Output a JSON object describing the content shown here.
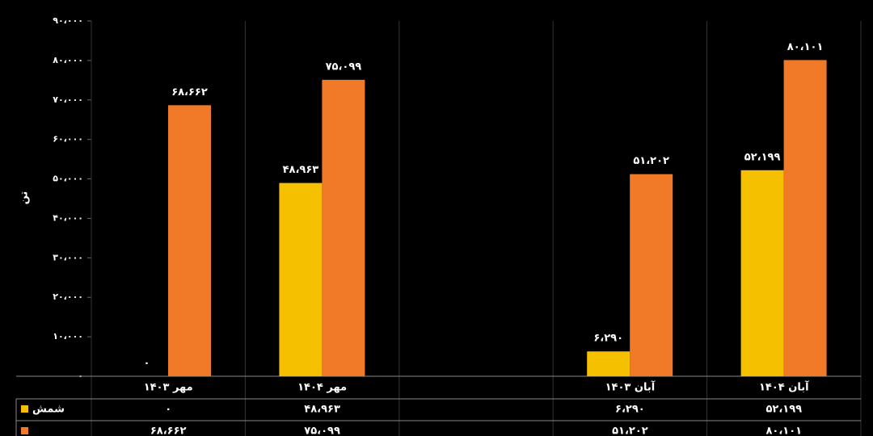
{
  "chart_data": {
    "type": "bar",
    "y_label": "تن",
    "categories": [
      "مهر ۱۴۰۳",
      "مهر ۱۴۰۴",
      null,
      "آبان ۱۴۰۳",
      "آبان ۱۴۰۴"
    ],
    "series": [
      {
        "name": "شمش",
        "color": "#f5c000",
        "values": [
          0,
          48963,
          null,
          6290,
          52199
        ],
        "value_labels": [
          "۰",
          "۴۸،۹۶۳",
          null,
          "۶،۲۹۰",
          "۵۲،۱۹۹"
        ]
      },
      {
        "color": "#f07a28",
        "values": [
          68662,
          75099,
          null,
          51202,
          80101
        ],
        "value_labels": [
          "۶۸،۶۶۲",
          "۷۵،۰۹۹",
          null,
          "۵۱،۲۰۲",
          "۸۰،۱۰۱"
        ]
      }
    ],
    "ylim": [
      0,
      90000
    ],
    "yticks": [
      {
        "value": 0,
        "label": "۰"
      },
      {
        "value": 10000,
        "label": "۱۰،۰۰۰"
      },
      {
        "value": 20000,
        "label": "۲۰،۰۰۰"
      },
      {
        "value": 30000,
        "label": "۳۰،۰۰۰"
      },
      {
        "value": 40000,
        "label": "۴۰،۰۰۰"
      },
      {
        "value": 50000,
        "label": "۵۰،۰۰۰"
      },
      {
        "value": 60000,
        "label": "۶۰،۰۰۰"
      },
      {
        "value": 70000,
        "label": "۷۰،۰۰۰"
      },
      {
        "value": 80000,
        "label": "۸۰،۰۰۰"
      },
      {
        "value": 90000,
        "label": "۹۰،۰۰۰"
      }
    ],
    "data_table": true
  }
}
